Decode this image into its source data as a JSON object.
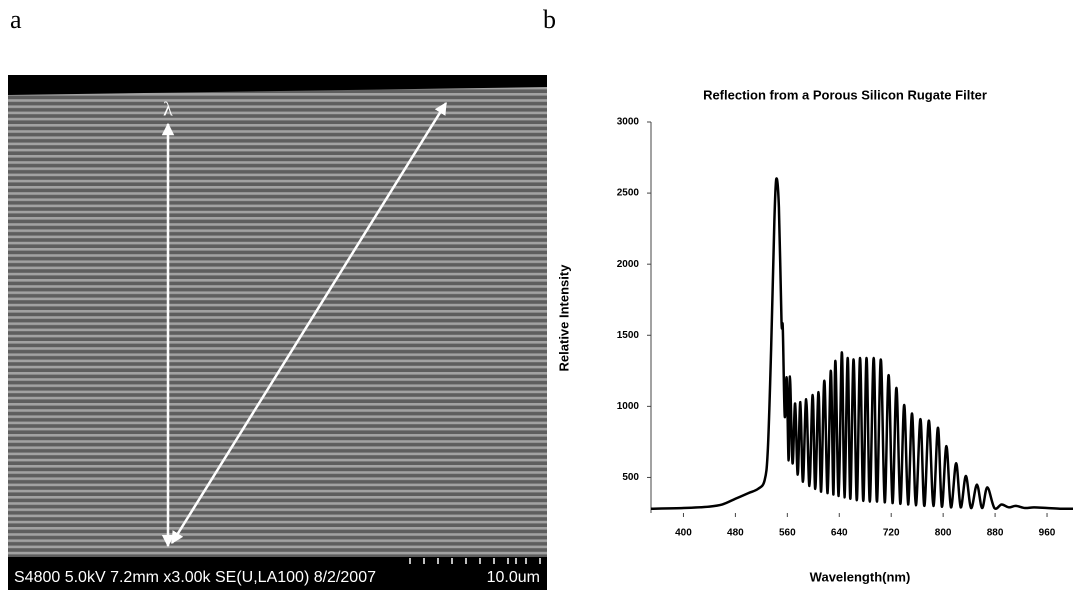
{
  "panels": {
    "a": {
      "label": "a",
      "lambda": "λ",
      "info": "S4800 5.0kV 7.2mm x3.00k SE(U,LA100) 8/2/2007",
      "scale": "10.0um"
    },
    "b": {
      "label": "b"
    }
  },
  "chart_data": {
    "type": "line",
    "title": "Reflection from a Porous Silicon Rugate Filter",
    "x_label": "Wavelength(nm)",
    "y_label": "Relative Intensity",
    "color": "#000000",
    "x": [
      350,
      400,
      440,
      460,
      480,
      500,
      515,
      525,
      530,
      535,
      540,
      543,
      547,
      551,
      553,
      556,
      559,
      562,
      564,
      568,
      572,
      576,
      580,
      584,
      589,
      594,
      599,
      603,
      608,
      612,
      617,
      622,
      627,
      631,
      634,
      639,
      644,
      648,
      653,
      657,
      662,
      667,
      672,
      677,
      682,
      687,
      693,
      698,
      704,
      710,
      716,
      722,
      728,
      734,
      740,
      746,
      752,
      758,
      765,
      771,
      778,
      785,
      792,
      798,
      805,
      812,
      820,
      827,
      835,
      843,
      852,
      860,
      868,
      879,
      890,
      901,
      912,
      926,
      940,
      960,
      980,
      1000
    ],
    "values": [
      280,
      285,
      295,
      310,
      350,
      390,
      420,
      480,
      700,
      1400,
      2300,
      2600,
      2400,
      1600,
      1550,
      930,
      1200,
      620,
      1210,
      600,
      1020,
      520,
      1030,
      470,
      1050,
      440,
      1080,
      420,
      1100,
      400,
      1180,
      390,
      1250,
      380,
      1320,
      370,
      1380,
      360,
      1340,
      350,
      1330,
      340,
      1340,
      335,
      1340,
      330,
      1340,
      330,
      1330,
      325,
      1220,
      320,
      1130,
      315,
      1010,
      310,
      950,
      305,
      910,
      300,
      900,
      300,
      850,
      295,
      720,
      290,
      600,
      290,
      510,
      285,
      450,
      285,
      430,
      285,
      310,
      290,
      300,
      285,
      290,
      285,
      280,
      280
    ],
    "xlim": [
      350,
      1000
    ],
    "ylim": [
      250,
      3000
    ],
    "xticks": [
      400,
      480,
      560,
      640,
      720,
      800,
      880,
      960
    ],
    "yticks": [
      500,
      1000,
      1500,
      2000,
      2500,
      3000
    ]
  }
}
